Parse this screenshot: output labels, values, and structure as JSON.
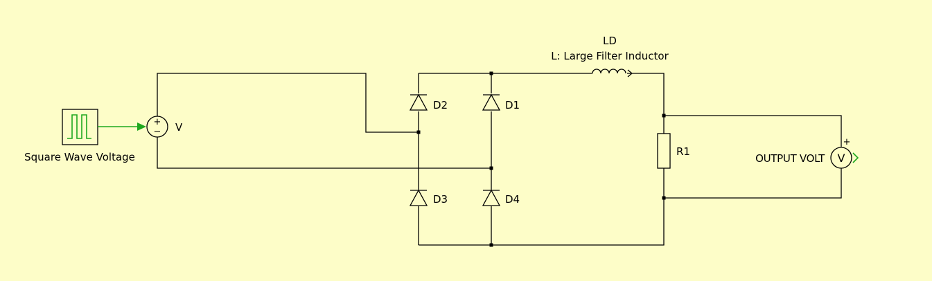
{
  "labels": {
    "source_block": "Square Wave Voltage",
    "voltage_source": "V",
    "d1": "D1",
    "d2": "D2",
    "d3": "D3",
    "d4": "D4",
    "inductor_name": "LD",
    "inductor_desc": "L: Large Filter Inductor",
    "resistor": "R1",
    "output_meter": "OUTPUT VOLT",
    "meter_symbol": "V",
    "plus_sign": "+",
    "minus_sign": "−"
  },
  "colors": {
    "background": "#fdfdc8",
    "wire": "#000000",
    "signal": "#1ea81e"
  }
}
